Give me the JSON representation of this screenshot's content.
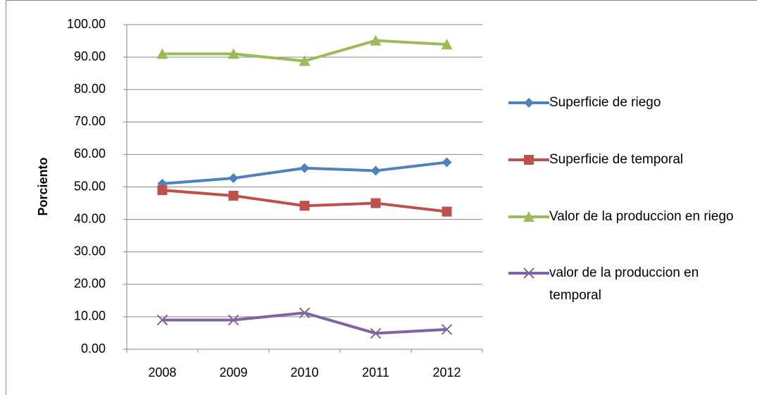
{
  "chart_data": {
    "type": "line",
    "y_label": "Porciento",
    "categories": [
      "2008",
      "2009",
      "2010",
      "2011",
      "2012"
    ],
    "series": [
      {
        "name": "Superficie de riego",
        "color": "#4f81bd",
        "marker": "diamond",
        "values": [
          51.0,
          52.7,
          55.8,
          55.0,
          57.6
        ]
      },
      {
        "name": "Superficie de temporal",
        "color": "#c0504d",
        "marker": "square",
        "values": [
          49.0,
          47.3,
          44.2,
          45.0,
          42.4
        ]
      },
      {
        "name": "Valor de la produccion en riego",
        "color": "#9bbb59",
        "marker": "triangle",
        "values": [
          91.0,
          91.0,
          88.8,
          95.1,
          93.9
        ]
      },
      {
        "name": "valor de la produccion en temporal",
        "color": "#8064a2",
        "marker": "x",
        "values": [
          9.0,
          9.0,
          11.2,
          4.9,
          6.1
        ]
      }
    ],
    "ylim": [
      0,
      100
    ],
    "yticks": [
      {
        "value": 0,
        "label": "0.00"
      },
      {
        "value": 10,
        "label": "10.00"
      },
      {
        "value": 20,
        "label": "20.00"
      },
      {
        "value": 30,
        "label": "30.00"
      },
      {
        "value": 40,
        "label": "40.00"
      },
      {
        "value": 50,
        "label": "50.00"
      },
      {
        "value": 60,
        "label": "60.00"
      },
      {
        "value": 70,
        "label": "70.00"
      },
      {
        "value": 80,
        "label": "80.00"
      },
      {
        "value": 90,
        "label": "90.00"
      },
      {
        "value": 100,
        "label": "100.00"
      }
    ],
    "grid": true,
    "legend": "right"
  }
}
